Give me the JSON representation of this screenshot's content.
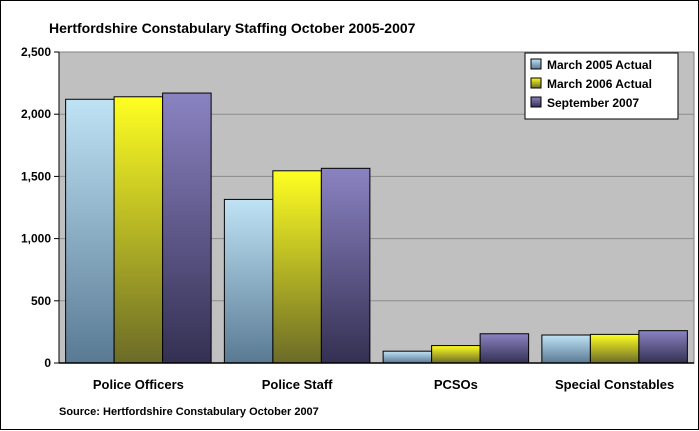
{
  "chart_data": {
    "type": "bar",
    "title": "Hertfordshire Constabulary Staffing October 2005-2007",
    "source": "Source: Hertfordshire Constabulary October 2007",
    "xlabel": "",
    "ylabel": "",
    "categories": [
      "Police Officers",
      "Police Staff",
      "PCSOs",
      "Special Constables"
    ],
    "series": [
      {
        "name": "March 2005 Actual",
        "values": [
          2120,
          1315,
          95,
          225
        ],
        "color_top": "#bfe3f5",
        "color_bottom": "#5a7a94"
      },
      {
        "name": "March 2006 Actual",
        "values": [
          2140,
          1545,
          140,
          230
        ],
        "color_top": "#ffff22",
        "color_bottom": "#6b6b28"
      },
      {
        "name": "September 2007",
        "values": [
          2170,
          1565,
          235,
          260
        ],
        "color_top": "#8a83c2",
        "color_bottom": "#343052"
      }
    ],
    "ylim": [
      0,
      2500
    ],
    "yticks": [
      0,
      500,
      1000,
      1500,
      2000,
      2500
    ],
    "ytick_labels": [
      "0",
      "500",
      "1,000",
      "1,500",
      "2,000",
      "2,500"
    ],
    "grid": true,
    "plot_background": "#c0c0c0",
    "legend_position": "top-right"
  }
}
